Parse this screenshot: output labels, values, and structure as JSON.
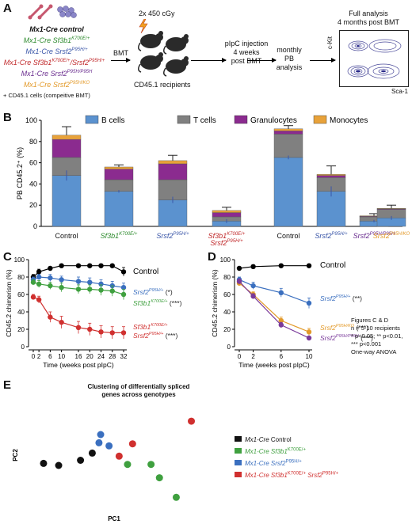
{
  "panel_a": {
    "letter": "A",
    "genotypes": [
      {
        "text": "Mx1-Cre control",
        "color": "#111111"
      },
      {
        "text": "Mx1-Cre Sf3b1",
        "sup": "K700E/+",
        "color": "#2e8b2e"
      },
      {
        "text": "Mx1-Cre Srsf2",
        "sup": "P95H/+",
        "color": "#3a56a8"
      },
      {
        "text": "Mx1-Cre Sf3b1",
        "sup": "K700E/+",
        "text2": "/Srsf2",
        "sup2": "P95H/+",
        "color": "#c0282a"
      },
      {
        "text": "Mx1-Cre Srsf2",
        "sup": "P95H/P95H",
        "color": "#6a2d8f"
      },
      {
        "text": "Mx1-Cre Srsf2",
        "sup": "P95H/KO",
        "color": "#e39a2a"
      }
    ],
    "cd45_note": "+ CD45.1 cells (compeitive BMT)",
    "bmt": "BMT",
    "irradiation": "2x 450 cGy",
    "recipients": "CD45.1 recipients",
    "pipc": [
      "pIpC injection",
      "4 weeks",
      "post BMT"
    ],
    "monthly": [
      "monthly",
      "PB",
      "analysis"
    ],
    "full": [
      "Full analysis",
      "4 months post BMT"
    ],
    "ckit": "c-Kit",
    "sca1": "Sca-1"
  },
  "panel_b": {
    "letter": "B",
    "chart_data": {
      "type": "bar",
      "stacked": true,
      "ylabel": "PB CD45.2⁺ (%)",
      "ylim": [
        0,
        100
      ],
      "yticks": [
        0,
        20,
        40,
        60,
        80,
        100
      ],
      "legend": [
        "B cells",
        "T cells",
        "Granulocytes",
        "Monocytes"
      ],
      "legend_position": "top",
      "series_colors": [
        "#5b92cf",
        "#808080",
        "#8b2b8f",
        "#e8a23a"
      ],
      "categories": [
        {
          "label": "Control",
          "sup": "",
          "label2": "",
          "sup2": "",
          "color": "#111111"
        },
        {
          "label": "Sf3b1",
          "sup": "K700E/+",
          "label2": "",
          "sup2": "",
          "color": "#2e8b2e"
        },
        {
          "label": "Srsf2",
          "sup": "P95H/+",
          "label2": "",
          "sup2": "",
          "color": "#3a56a8"
        },
        {
          "label": "Sf3b1",
          "sup": "K700E/+",
          "label2": "Srsf2",
          "sup2": "P95H/+",
          "color": "#c0282a"
        },
        {
          "label": "Control",
          "sup": "",
          "label2": "",
          "sup2": "",
          "color": "#111111"
        },
        {
          "label": "Srsf2",
          "sup": "P95H/+",
          "label2": "",
          "sup2": "",
          "color": "#3a56a8"
        },
        {
          "label": "Srsf2",
          "sup": "P95H/P95H",
          "label2": "",
          "sup2": "",
          "color": "#6a2d8f"
        },
        {
          "label": "Srsf2",
          "sup": "P95H/KO",
          "label2": "",
          "sup2": "",
          "color": "#e39a2a"
        }
      ],
      "series": [
        {
          "name": "B cells",
          "values": [
            48,
            33,
            25,
            5,
            65,
            33,
            5,
            8
          ]
        },
        {
          "name": "T cells",
          "values": [
            17,
            11,
            19,
            4,
            22,
            13,
            4,
            8
          ]
        },
        {
          "name": "Granulocytes",
          "values": [
            17,
            10,
            15,
            4,
            3,
            2,
            0.5,
            0.5
          ]
        },
        {
          "name": "Monocytes",
          "values": [
            4,
            2,
            3,
            2,
            2,
            1,
            0.5,
            0.5
          ]
        }
      ],
      "total_error": [
        8,
        2,
        5,
        3,
        3,
        8,
        2,
        3
      ]
    }
  },
  "panel_c": {
    "letter": "C",
    "chart_data": {
      "type": "line",
      "ylabel": "CD45.2 chimerism (%)",
      "xlabel": "Time (weeks post pIpC)",
      "x": [
        0,
        2,
        6,
        10,
        16,
        20,
        24,
        28,
        32
      ],
      "ylim": [
        0,
        100
      ],
      "yticks": [
        0,
        20,
        40,
        60,
        80,
        100
      ],
      "series": [
        {
          "label": "Control",
          "label_sup": "",
          "label2": "",
          "label2_sup": "",
          "stars": "",
          "color": "#000000",
          "values": [
            80,
            86,
            90,
            93,
            93,
            93,
            93,
            93,
            86
          ],
          "err": [
            3,
            3,
            2,
            2,
            2,
            2,
            2,
            2,
            5
          ]
        },
        {
          "label": "Srsf2",
          "label_sup": "P95H/+",
          "label2": "",
          "label2_sup": "",
          "stars": "(*)",
          "color": "#3a6fbf",
          "values": [
            77,
            80,
            79,
            77,
            75,
            74,
            72,
            70,
            68
          ],
          "err": [
            3,
            3,
            4,
            4,
            5,
            5,
            5,
            5,
            5
          ]
        },
        {
          "label": "Sf3b1",
          "label_sup": "K700E/+",
          "label2": "",
          "label2_sup": "",
          "stars": "(***)",
          "color": "#3fa03f",
          "values": [
            74,
            72,
            70,
            68,
            66,
            66,
            65,
            64,
            60
          ],
          "err": [
            3,
            4,
            4,
            5,
            5,
            5,
            6,
            6,
            6
          ]
        },
        {
          "label": "Sf3b1",
          "label_sup": "K700E/+",
          "label2": "Srsf2",
          "label2_sup": "P95H/+",
          "stars": "(***)",
          "color": "#d0302f",
          "values": [
            57,
            54,
            34,
            28,
            22,
            20,
            17,
            16,
            16
          ],
          "err": [
            3,
            4,
            6,
            7,
            7,
            7,
            7,
            7,
            7
          ]
        }
      ]
    }
  },
  "panel_d": {
    "letter": "D",
    "chart_data": {
      "type": "line",
      "ylabel": "CD45.2 chimerism (%)",
      "xlabel": "Time (weeks post pIpC)",
      "x": [
        0,
        2,
        6,
        10
      ],
      "ylim": [
        0,
        100
      ],
      "yticks": [
        0,
        20,
        40,
        60,
        80,
        100
      ],
      "series": [
        {
          "label": "Control",
          "label_sup": "",
          "stars": "",
          "color": "#000000",
          "values": [
            90,
            92,
            93,
            93
          ],
          "err": [
            2,
            2,
            2,
            2
          ]
        },
        {
          "label": "Srsf2",
          "label_sup": "P95H/+",
          "stars": "(**)",
          "color": "#3a6fbf",
          "values": [
            77,
            70,
            62,
            50
          ],
          "err": [
            3,
            4,
            5,
            6
          ]
        },
        {
          "label": "Srsf2",
          "label_sup": "P95H/KO",
          "stars": "(***)",
          "color": "#e39a2a",
          "values": [
            73,
            60,
            30,
            17
          ],
          "err": [
            3,
            3,
            4,
            4
          ]
        },
        {
          "label": "Srsf2",
          "label_sup": "P95H/P95H",
          "stars": "(***)",
          "color": "#7a3a9a",
          "values": [
            75,
            58,
            25,
            10
          ],
          "err": [
            3,
            3,
            3,
            2
          ]
        }
      ]
    },
    "notes": [
      "Figures C & D",
      "n = 5-10 recipients",
      "* p<0.05; ** p<0.01,",
      "*** p<0.001",
      "One-way ANOVA"
    ]
  },
  "panel_e": {
    "letter": "E",
    "chart_data": {
      "type": "scatter",
      "title": "Clustering of differentially spliced genes across genotypes",
      "xlabel": "PC1",
      "ylabel": "PC2",
      "grid": false,
      "series": [
        {
          "name": "Mx1-Cre Control",
          "color": "#111111",
          "points": [
            [
              0.08,
              0.42
            ],
            [
              0.17,
              0.4
            ],
            [
              0.3,
              0.45
            ],
            [
              0.37,
              0.52
            ]
          ]
        },
        {
          "name": "Mx1-Cre Sf3b1 K700E/+",
          "color": "#3fa03f",
          "points": [
            [
              0.58,
              0.41
            ],
            [
              0.72,
              0.41
            ],
            [
              0.77,
              0.28
            ],
            [
              0.87,
              0.09
            ]
          ]
        },
        {
          "name": "Mx1-Cre Srsf2 P95H/+",
          "color": "#3a6fbf",
          "points": [
            [
              0.42,
              0.7
            ],
            [
              0.41,
              0.62
            ],
            [
              0.47,
              0.59
            ]
          ]
        },
        {
          "name": "Mx1-Cre Sf3b1 K700E/+ Srsf2 P95H/+",
          "color": "#d0302f",
          "points": [
            [
              0.53,
              0.49
            ],
            [
              0.61,
              0.61
            ],
            [
              0.96,
              0.83
            ]
          ]
        }
      ]
    },
    "legend": [
      {
        "text": "Mx1-Cre",
        "rest": " Control",
        "sup": "",
        "rest2": "",
        "sup2": "",
        "color": "#111111"
      },
      {
        "text": "Mx1-Cre Sf3b1",
        "rest": "",
        "sup": "K700E/+",
        "rest2": "",
        "sup2": "",
        "color": "#3fa03f"
      },
      {
        "text": "Mx1-Cre Srsf2",
        "rest": "",
        "sup": "P95H/+",
        "rest2": "",
        "sup2": "",
        "color": "#3a6fbf"
      },
      {
        "text": "Mx1-Cre Sf3b1",
        "rest": "",
        "sup": "K700E/+",
        "rest2": " Srsf2",
        "sup2": "P95H/+",
        "color": "#d0302f"
      }
    ]
  }
}
